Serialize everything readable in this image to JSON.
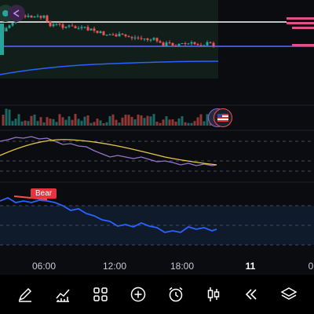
{
  "chart": {
    "time_labels": [
      {
        "label": "06:00",
        "emphasis": false
      },
      {
        "label": "12:00",
        "emphasis": false
      },
      {
        "label": "18:00",
        "emphasis": false
      },
      {
        "label": "11",
        "emphasis": true
      },
      {
        "label": "0",
        "emphasis": false
      }
    ],
    "indicator_badge": "Bear",
    "colors": {
      "up_candle": "#26a69a",
      "down_candle": "#ef5350",
      "price_line": "#ffffff",
      "ma_line": "#2962ff",
      "rsi_line": "#9575cd",
      "signal_line": "#e4c74c",
      "bear_line": "#2962ff"
    }
  },
  "toolbar": {
    "items": [
      {
        "name": "draw-icon"
      },
      {
        "name": "indicators-icon"
      },
      {
        "name": "layouts-icon"
      },
      {
        "name": "add-icon"
      },
      {
        "name": "alert-clock-icon"
      },
      {
        "name": "candles-icon"
      },
      {
        "name": "replay-icon"
      },
      {
        "name": "layers-icon"
      }
    ]
  }
}
